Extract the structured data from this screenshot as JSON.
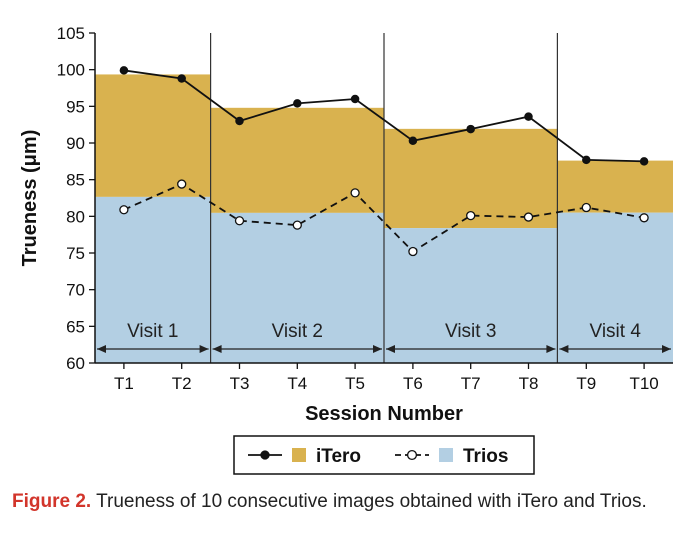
{
  "chart_data": {
    "type": "line",
    "title": "",
    "xlabel": "Session Number",
    "ylabel": "Trueness (μm)",
    "ylim": [
      60,
      105
    ],
    "yticks": [
      60,
      65,
      70,
      75,
      80,
      85,
      90,
      95,
      100,
      105
    ],
    "categories": [
      "T1",
      "T2",
      "T3",
      "T4",
      "T5",
      "T6",
      "T7",
      "T8",
      "T9",
      "T10"
    ],
    "series": [
      {
        "name": "iTero",
        "line_style": "solid",
        "marker": "filled-circle",
        "color": "#111111",
        "band_color": "#d9b24f",
        "values": [
          99.9,
          98.8,
          93.0,
          95.4,
          96.0,
          90.3,
          91.9,
          93.6,
          87.7,
          87.5
        ]
      },
      {
        "name": "Trios",
        "line_style": "dashed",
        "marker": "open-circle",
        "color": "#111111",
        "band_color": "#b3cfe3",
        "values": [
          80.9,
          84.4,
          79.4,
          78.8,
          83.2,
          75.2,
          80.1,
          79.9,
          81.2,
          79.8
        ]
      }
    ],
    "visits": [
      {
        "label": "Visit 1",
        "start": 0,
        "end": 1,
        "itero_mean": 99.35,
        "trios_mean": 82.65
      },
      {
        "label": "Visit 2",
        "start": 2,
        "end": 4,
        "itero_mean": 94.8,
        "trios_mean": 80.47
      },
      {
        "label": "Visit 3",
        "start": 5,
        "end": 7,
        "itero_mean": 91.93,
        "trios_mean": 78.4
      },
      {
        "label": "Visit 4",
        "start": 8,
        "end": 9,
        "itero_mean": 87.6,
        "trios_mean": 80.5
      }
    ]
  },
  "caption": {
    "lead": "Figure 2.",
    "text": "Trueness of 10 consecutive images obtained with iTero and Trios."
  }
}
